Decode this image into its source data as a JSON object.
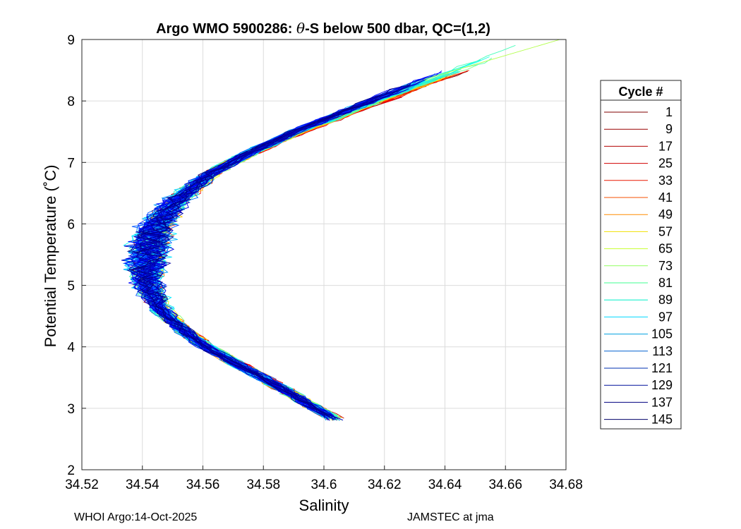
{
  "chart_data": {
    "type": "line",
    "title_prefix": "Argo WMO 5900286: ",
    "title_theta": "θ",
    "title_suffix": "-S below 500 dbar,  QC=(1,2)",
    "xlabel": "Salinity",
    "ylabel": "Potential Temperature (˚C)",
    "xlim": [
      34.52,
      34.68
    ],
    "ylim": [
      2,
      9
    ],
    "xticks": [
      34.52,
      34.54,
      34.56,
      34.58,
      34.6,
      34.62,
      34.64,
      34.66,
      34.68
    ],
    "xtick_labels": [
      "34.52",
      "34.54",
      "34.56",
      "34.58",
      "34.6",
      "34.62",
      "34.64",
      "34.66",
      "34.68"
    ],
    "yticks": [
      2,
      3,
      4,
      5,
      6,
      7,
      8,
      9
    ],
    "ytick_labels": [
      "2",
      "3",
      "4",
      "5",
      "6",
      "7",
      "8",
      "9"
    ],
    "grid": true,
    "legend_title": "Cycle #",
    "legend_position": "outside-right",
    "colormap": "jet",
    "cycle_min": 1,
    "cycle_max": 150,
    "legend_entries": [
      {
        "label": "1",
        "color": "#800000"
      },
      {
        "label": "9",
        "color": "#990000"
      },
      {
        "label": "17",
        "color": "#b30000"
      },
      {
        "label": "25",
        "color": "#d00000"
      },
      {
        "label": "33",
        "color": "#ea1800"
      },
      {
        "label": "41",
        "color": "#f55000"
      },
      {
        "label": "49",
        "color": "#ff8c00"
      },
      {
        "label": "57",
        "color": "#f0e000"
      },
      {
        "label": "65",
        "color": "#c8ff30"
      },
      {
        "label": "73",
        "color": "#90ff60"
      },
      {
        "label": "81",
        "color": "#40ff90"
      },
      {
        "label": "89",
        "color": "#00f0c8"
      },
      {
        "label": "97",
        "color": "#00d8ff"
      },
      {
        "label": "105",
        "color": "#00a0e0"
      },
      {
        "label": "113",
        "color": "#0060d0"
      },
      {
        "label": "121",
        "color": "#0030b0"
      },
      {
        "label": "129",
        "color": "#00109a"
      },
      {
        "label": "137",
        "color": "#000080"
      },
      {
        "label": "145",
        "color": "#00006a"
      }
    ],
    "mean_profile": {
      "theta": [
        2.85,
        3.0,
        3.3,
        3.6,
        4.0,
        4.3,
        4.6,
        5.0,
        5.3,
        5.6,
        6.0,
        6.4,
        6.8,
        7.1,
        7.5,
        7.8,
        8.1,
        8.35
      ],
      "salinity": [
        34.603,
        34.597,
        34.587,
        34.576,
        34.561,
        34.553,
        34.546,
        34.542,
        34.5415,
        34.542,
        34.545,
        34.552,
        34.562,
        34.573,
        34.59,
        34.605,
        34.62,
        34.633
      ]
    },
    "extremes": {
      "salinity_max": 34.678,
      "theta_max": 9.0,
      "salinity_min": 34.532,
      "theta_min": 2.78
    }
  },
  "footer": {
    "left": "WHOI Argo:14-Oct-2025",
    "right": "JAMSTEC at jma"
  }
}
